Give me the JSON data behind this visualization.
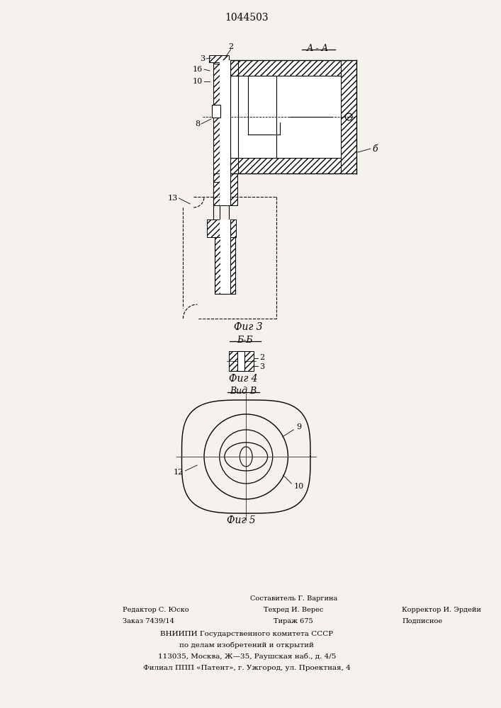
{
  "title": "1044503",
  "bg_color": "#f5f2ee",
  "line_color": "#000000",
  "fig3_label": "Фиг 3",
  "fig4_label": "Фиг 4",
  "fig5_label": "Фиг 5",
  "section_aa_label": "А - А",
  "section_bb_label": "Б-Б",
  "view_b_label": "Вид В"
}
